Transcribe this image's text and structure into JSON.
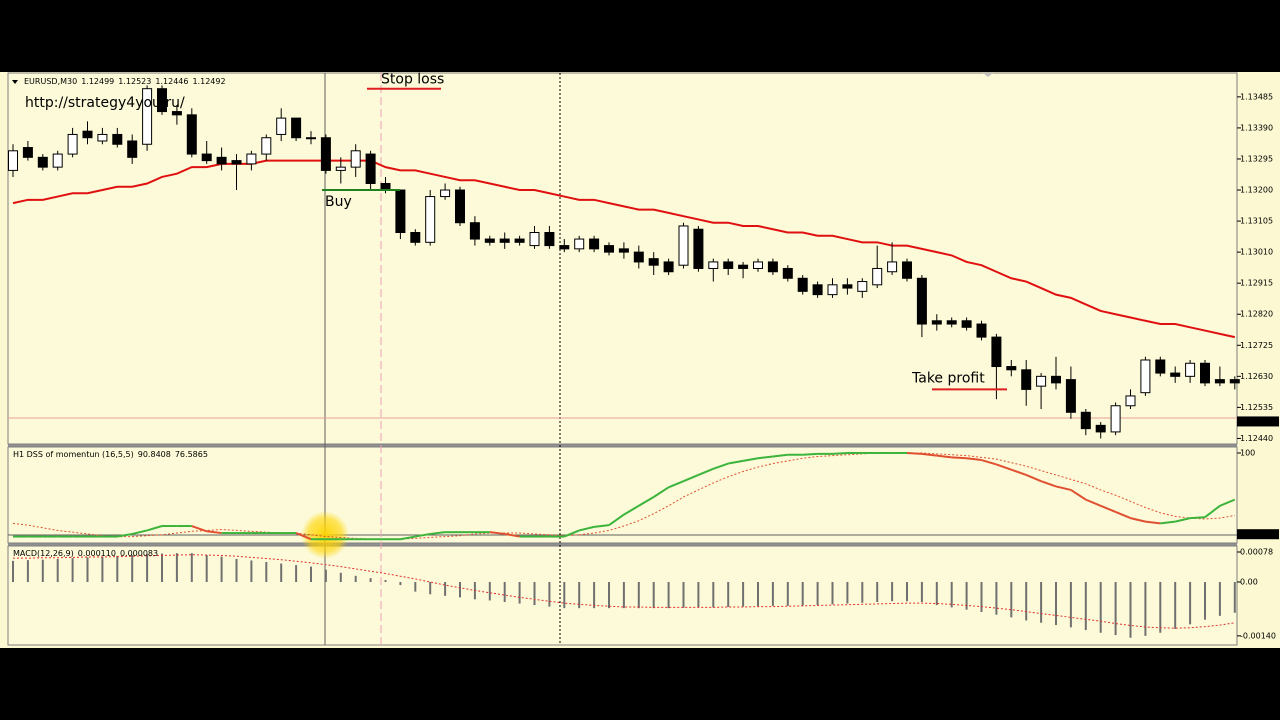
{
  "chart_data": [
    {
      "type": "candlestick",
      "title": "EURUSD,M30",
      "header_values": [
        1.12499,
        1.12523,
        1.12446,
        1.12492
      ],
      "annotation": "http://strategy4you.ru/",
      "open": [
        1.1326,
        1.1333,
        1.133,
        1.1327,
        1.1331,
        1.1338,
        1.1335,
        1.1337,
        1.1335,
        1.1334,
        1.1351,
        1.1344,
        1.1343,
        1.1331,
        1.133,
        1.1329,
        1.1328,
        1.1331,
        1.1337,
        1.1342,
        1.1336,
        1.1336,
        1.1326,
        1.1327,
        1.1331,
        1.1322,
        1.132,
        1.1307,
        1.1304,
        1.1318,
        1.132,
        1.131,
        1.1305,
        1.1305,
        1.1305,
        1.1303,
        1.1307,
        1.1303,
        1.1302,
        1.1305,
        1.1303,
        1.1302,
        1.1301,
        1.1299,
        1.1298,
        1.1297,
        1.1308,
        1.1296,
        1.1298,
        1.1297,
        1.1296,
        1.1298,
        1.1296,
        1.1293,
        1.1291,
        1.1288,
        1.1291,
        1.1289,
        1.1291,
        1.1295,
        1.1298,
        1.1293,
        1.128,
        1.128,
        1.128,
        1.1279,
        1.1275,
        1.1266,
        1.1265,
        1.126,
        1.1263,
        1.1262,
        1.1252,
        1.1248,
        1.1246,
        1.1254,
        1.1258,
        1.1268,
        1.1264,
        1.1263,
        1.1267,
        1.1262,
        1.1262
      ],
      "high": [
        1.1334,
        1.1335,
        1.1331,
        1.1332,
        1.1339,
        1.1341,
        1.1339,
        1.1339,
        1.1337,
        1.1352,
        1.1352,
        1.1346,
        1.1345,
        1.1335,
        1.1333,
        1.1331,
        1.1332,
        1.1337,
        1.1345,
        1.1342,
        1.1338,
        1.1337,
        1.133,
        1.1334,
        1.1332,
        1.1324,
        1.132,
        1.1308,
        1.132,
        1.1322,
        1.1321,
        1.1312,
        1.1306,
        1.1307,
        1.1306,
        1.1309,
        1.1309,
        1.1305,
        1.1306,
        1.1306,
        1.1304,
        1.1304,
        1.1303,
        1.1301,
        1.1299,
        1.131,
        1.1309,
        1.1299,
        1.1299,
        1.1298,
        1.1299,
        1.1299,
        1.1297,
        1.1294,
        1.1292,
        1.1293,
        1.1293,
        1.1293,
        1.1303,
        1.1304,
        1.1299,
        1.1294,
        1.1282,
        1.1281,
        1.1281,
        1.128,
        1.1276,
        1.1268,
        1.1268,
        1.1264,
        1.1269,
        1.1266,
        1.1253,
        1.1249,
        1.1255,
        1.1259,
        1.1269,
        1.1269,
        1.1266,
        1.1268,
        1.1268,
        1.1266,
        1.1263
      ],
      "low": [
        1.1324,
        1.1329,
        1.1326,
        1.1326,
        1.133,
        1.1334,
        1.1334,
        1.1333,
        1.1328,
        1.1332,
        1.1343,
        1.134,
        1.133,
        1.1328,
        1.1326,
        1.132,
        1.1326,
        1.1329,
        1.1335,
        1.1335,
        1.1334,
        1.1325,
        1.1322,
        1.1324,
        1.132,
        1.1319,
        1.1305,
        1.1303,
        1.1303,
        1.1317,
        1.1309,
        1.1303,
        1.1303,
        1.1302,
        1.1303,
        1.1302,
        1.1302,
        1.1301,
        1.1301,
        1.1301,
        1.13,
        1.1299,
        1.1296,
        1.1294,
        1.1294,
        1.1296,
        1.1295,
        1.1292,
        1.1294,
        1.1293,
        1.1295,
        1.1294,
        1.1292,
        1.1288,
        1.1287,
        1.1287,
        1.1288,
        1.1287,
        1.129,
        1.1294,
        1.1292,
        1.1275,
        1.1277,
        1.1278,
        1.1277,
        1.1274,
        1.1256,
        1.1263,
        1.1254,
        1.1253,
        1.1259,
        1.125,
        1.1245,
        1.1244,
        1.1245,
        1.1253,
        1.1257,
        1.1263,
        1.1261,
        1.1261,
        1.126,
        1.126,
        1.1259
      ],
      "close": [
        1.1332,
        1.133,
        1.1327,
        1.1331,
        1.1337,
        1.1336,
        1.1337,
        1.1334,
        1.133,
        1.1351,
        1.1344,
        1.1343,
        1.1331,
        1.1329,
        1.1328,
        1.1328,
        1.1331,
        1.1336,
        1.1342,
        1.1336,
        1.1336,
        1.1326,
        1.1327,
        1.1332,
        1.1322,
        1.132,
        1.1307,
        1.1304,
        1.1318,
        1.132,
        1.131,
        1.1305,
        1.1304,
        1.1304,
        1.1304,
        1.1307,
        1.1303,
        1.1302,
        1.1305,
        1.1302,
        1.1301,
        1.1301,
        1.1298,
        1.1297,
        1.1295,
        1.1309,
        1.1296,
        1.1298,
        1.1296,
        1.1296,
        1.1298,
        1.1295,
        1.1293,
        1.1289,
        1.1288,
        1.1291,
        1.129,
        1.1292,
        1.1296,
        1.1298,
        1.1293,
        1.1279,
        1.1279,
        1.1279,
        1.1278,
        1.1275,
        1.1266,
        1.1265,
        1.1259,
        1.1263,
        1.1261,
        1.1252,
        1.1247,
        1.1246,
        1.1254,
        1.1257,
        1.1268,
        1.1264,
        1.1263,
        1.1267,
        1.1261,
        1.1261,
        1.1261
      ],
      "ma": {
        "color": "#e01010",
        "values": [
          1.1316,
          1.1317,
          1.1317,
          1.1318,
          1.1319,
          1.1319,
          1.132,
          1.1321,
          1.1321,
          1.1322,
          1.1324,
          1.1325,
          1.1327,
          1.1327,
          1.1328,
          1.1328,
          1.1328,
          1.1329,
          1.1329,
          1.1329,
          1.1329,
          1.1329,
          1.1329,
          1.1329,
          1.1329,
          1.1327,
          1.1326,
          1.1326,
          1.1325,
          1.1324,
          1.1323,
          1.1323,
          1.1322,
          1.1321,
          1.132,
          1.132,
          1.1319,
          1.1318,
          1.1317,
          1.1317,
          1.1316,
          1.1315,
          1.1314,
          1.1314,
          1.1313,
          1.1312,
          1.1311,
          1.131,
          1.131,
          1.1309,
          1.1309,
          1.1308,
          1.1307,
          1.1307,
          1.1306,
          1.1306,
          1.1305,
          1.1304,
          1.1304,
          1.1303,
          1.1303,
          1.1302,
          1.1301,
          1.13,
          1.1298,
          1.1297,
          1.1295,
          1.1293,
          1.1292,
          1.129,
          1.1288,
          1.1287,
          1.1285,
          1.1283,
          1.1282,
          1.1281,
          1.128,
          1.1279,
          1.1279,
          1.1278,
          1.1277,
          1.1276,
          1.1275
        ]
      },
      "levels": [
        {
          "label": "Stop loss",
          "value": 1.1351,
          "color": "#e02020"
        },
        {
          "label": "Buy",
          "value": 1.132,
          "color": "#208020"
        },
        {
          "label": "Take profit",
          "value": 1.1259,
          "color": "#e02020"
        }
      ],
      "current_price": 1.12492,
      "ylim": [
        1.12423,
        1.13558
      ],
      "yticks": [
        1.13485,
        {
          "value": 1.1339,
          "label": "1.13390"
        },
        1.13295,
        {
          "value": 1.132,
          "label": "1.13200"
        },
        1.13105,
        {
          "value": 1.1301,
          "label": "1.13010"
        },
        1.12915,
        {
          "value": 1.1282,
          "label": "1.12820"
        },
        1.12725,
        {
          "value": 1.1263,
          "label": "1.12630"
        },
        1.12535,
        {
          "value": 1.1244,
          "label": "1.12440"
        }
      ]
    },
    {
      "type": "line",
      "title": "H1 DSS of momentun (16,5,5)",
      "header_values": [
        90.8408,
        76.5865
      ],
      "series": [
        {
          "color": "#3cb43c",
          "down_color": "#e05030",
          "values": [
            5,
            5,
            5,
            5,
            5,
            5,
            5,
            5,
            8,
            12,
            17,
            17,
            17,
            11,
            9,
            9,
            9,
            9,
            9,
            9,
            2,
            2,
            2,
            2,
            2,
            2,
            2,
            5,
            8,
            10,
            10,
            10,
            10,
            8,
            5,
            5,
            5,
            5,
            12,
            16,
            18,
            30,
            40,
            50,
            61,
            68,
            75,
            82,
            88,
            91,
            94,
            96,
            98,
            98,
            99,
            99,
            100,
            100,
            100,
            100,
            100,
            99,
            97,
            95,
            94,
            92,
            87,
            81,
            75,
            68,
            62,
            58,
            47,
            40,
            33,
            26,
            22,
            20,
            22,
            26,
            27,
            40,
            47
          ]
        },
        {
          "color": "#e05030",
          "values": [
            20,
            18,
            15,
            12,
            10,
            8,
            6,
            5,
            5,
            6,
            7,
            9,
            11,
            12,
            13,
            12,
            11,
            10,
            9,
            9,
            7,
            5,
            4,
            3,
            2,
            2,
            2,
            3,
            4,
            5,
            6,
            8,
            9,
            9,
            9,
            8,
            7,
            6,
            7,
            9,
            12,
            17,
            23,
            31,
            40,
            50,
            58,
            66,
            73,
            79,
            84,
            88,
            91,
            94,
            96,
            97,
            98,
            99,
            100,
            100,
            100,
            100,
            99,
            98,
            97,
            95,
            93,
            89,
            85,
            80,
            75,
            70,
            65,
            58,
            52,
            45,
            38,
            32,
            28,
            26,
            25,
            26,
            29
          ]
        }
      ],
      "current_value": 7.6923,
      "ylim": [
        -2.3,
        106.8
      ],
      "yticks": [
        100
      ]
    },
    {
      "type": "bar",
      "title": "MACD(12,26,9)",
      "header_values": [
        {
          "value": 0.00011,
          "label": "0.000110"
        },
        8.3e-05
      ],
      "color": "#707070",
      "values": [
        0.00055,
        0.00057,
        0.00058,
        0.0006,
        0.00062,
        0.00064,
        0.00066,
        0.00068,
        0.0007,
        0.00072,
        0.00074,
        0.00075,
        0.00075,
        0.0007,
        0.00066,
        0.0006,
        0.00056,
        0.00052,
        0.00048,
        0.00044,
        0.0004,
        0.00032,
        0.00024,
        0.00016,
        0.0001,
        5e-05,
        -8e-05,
        -0.00025,
        -0.00032,
        -0.00036,
        -0.0004,
        -0.00045,
        -0.00048,
        -0.00052,
        -0.00056,
        -0.0006,
        -0.00064,
        -0.00068,
        -0.00068,
        -0.00068,
        -0.00068,
        -0.00068,
        -0.00068,
        -0.00068,
        -0.00068,
        -0.00067,
        -0.00066,
        -0.00066,
        -0.00065,
        -0.00064,
        -0.00063,
        -0.00062,
        -0.00062,
        -0.00061,
        -0.0006,
        -0.00058,
        -0.00056,
        -0.00054,
        -0.00052,
        -0.0005,
        -0.0005,
        -0.00052,
        -0.0006,
        -0.00066,
        -0.00072,
        -0.00078,
        -0.00085,
        -0.00092,
        -0.001,
        -0.00106,
        -0.00112,
        -0.00118,
        -0.00125,
        -0.00132,
        -0.00138,
        -0.00145,
        -0.0014,
        -0.00132,
        -0.00122,
        -0.0011,
        -0.00098,
        -0.00088,
        -0.0008
      ],
      "signal": {
        "color": "#e03030",
        "values": [
          0.00062,
          0.00062,
          0.00063,
          0.00063,
          0.00064,
          0.00065,
          0.00065,
          0.00066,
          0.00067,
          0.00068,
          0.00069,
          0.0007,
          0.00071,
          0.0007,
          0.00069,
          0.00067,
          0.00064,
          0.00061,
          0.00058,
          0.00054,
          0.0005,
          0.00045,
          0.0004,
          0.00034,
          0.00028,
          0.00022,
          0.00015,
          8e-05,
          0,
          -8e-05,
          -0.00015,
          -0.00022,
          -0.00028,
          -0.00034,
          -0.0004,
          -0.00045,
          -0.0005,
          -0.00055,
          -0.00058,
          -0.00061,
          -0.00063,
          -0.00065,
          -0.00065,
          -0.00066,
          -0.00066,
          -0.00066,
          -0.00066,
          -0.00066,
          -0.00065,
          -0.00065,
          -0.00064,
          -0.00064,
          -0.00063,
          -0.00062,
          -0.00061,
          -0.0006,
          -0.00059,
          -0.00058,
          -0.00057,
          -0.00056,
          -0.00055,
          -0.00055,
          -0.00056,
          -0.00058,
          -0.00061,
          -0.00064,
          -0.00068,
          -0.00072,
          -0.00077,
          -0.00082,
          -0.00087,
          -0.00092,
          -0.00097,
          -0.00102,
          -0.00108,
          -0.00113,
          -0.00117,
          -0.00119,
          -0.0012,
          -0.00119,
          -0.00116,
          -0.00112,
          -0.00106
        ]
      },
      "ylim": [
        -0.001638,
        0.000936
      ],
      "yticks": [
        0.00078,
        {
          "value": 0,
          "label": "0.00"
        },
        {
          "value": -0.0014,
          "label": "-0.00140"
        }
      ]
    }
  ]
}
